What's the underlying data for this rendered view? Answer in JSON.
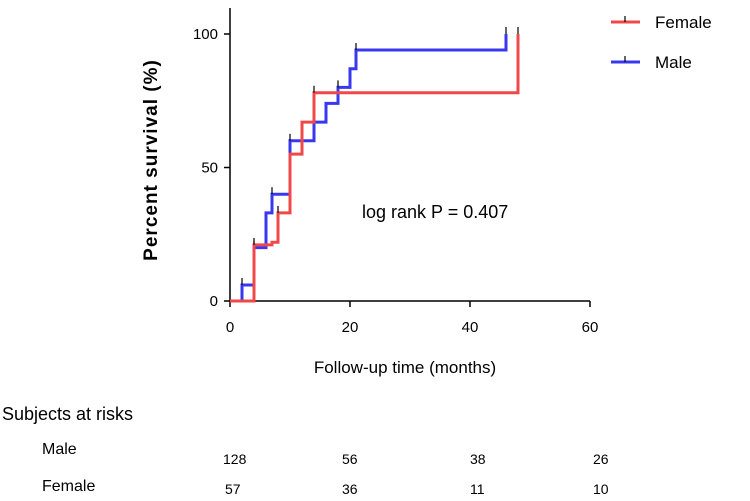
{
  "chart_data": {
    "type": "line",
    "subtype": "kaplan-meier-step",
    "title": "",
    "xlabel": "Follow-up time (months)",
    "ylabel": "Percent survival (%)",
    "xlim": [
      0,
      60
    ],
    "ylim": [
      0,
      100
    ],
    "xticks": [
      0,
      20,
      40,
      60
    ],
    "yticks": [
      0,
      50,
      100
    ],
    "grid": false,
    "legend_position": "top-right",
    "series": [
      {
        "name": "Female",
        "color": "#f04848",
        "steps": [
          [
            0,
            0
          ],
          [
            4,
            0
          ],
          [
            4,
            21
          ],
          [
            7,
            21
          ],
          [
            7,
            22
          ],
          [
            8,
            22
          ],
          [
            8,
            33
          ],
          [
            10,
            33
          ],
          [
            10,
            55
          ],
          [
            12,
            55
          ],
          [
            12,
            67
          ],
          [
            14,
            67
          ],
          [
            14,
            78
          ],
          [
            48,
            78
          ],
          [
            48,
            100
          ]
        ],
        "censor_marks": [
          [
            4,
            21
          ],
          [
            8,
            33
          ],
          [
            14,
            78
          ],
          [
            48,
            100
          ]
        ]
      },
      {
        "name": "Male",
        "color": "#3838f0",
        "steps": [
          [
            0,
            0
          ],
          [
            2,
            0
          ],
          [
            2,
            6
          ],
          [
            4,
            6
          ],
          [
            4,
            20
          ],
          [
            6,
            20
          ],
          [
            6,
            33
          ],
          [
            7,
            33
          ],
          [
            7,
            40
          ],
          [
            10,
            40
          ],
          [
            10,
            60
          ],
          [
            14,
            60
          ],
          [
            14,
            67
          ],
          [
            16,
            67
          ],
          [
            16,
            74
          ],
          [
            18,
            74
          ],
          [
            18,
            80
          ],
          [
            20,
            80
          ],
          [
            20,
            87
          ],
          [
            21,
            87
          ],
          [
            21,
            94
          ],
          [
            46,
            94
          ],
          [
            46,
            100
          ]
        ],
        "censor_marks": [
          [
            2,
            6
          ],
          [
            4,
            20
          ],
          [
            7,
            40
          ],
          [
            10,
            60
          ],
          [
            14,
            67
          ],
          [
            18,
            80
          ],
          [
            21,
            94
          ],
          [
            46,
            100
          ]
        ]
      }
    ],
    "annotations": [
      "log rank P = 0.407"
    ],
    "risk_table": {
      "title": "Subjects at risks",
      "rows": [
        {
          "label": "Male",
          "values": [
            "128",
            "56",
            "38",
            "26"
          ]
        },
        {
          "label": "Female",
          "values": [
            "57",
            "36",
            "11",
            "10"
          ]
        }
      ]
    }
  }
}
